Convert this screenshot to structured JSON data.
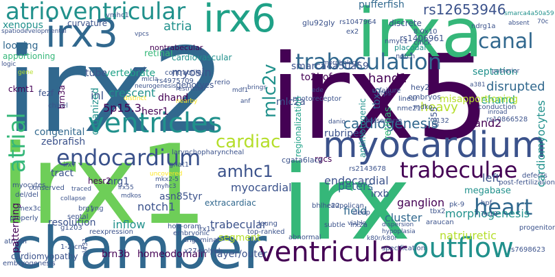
{
  "palette": {
    "background": "#ffffff",
    "dark_purple": "#440154",
    "indigo": "#3b528b",
    "blue": "#31688e",
    "teal": "#21918c",
    "cyan_green": "#1fa187",
    "green": "#35b779",
    "lime": "#6ece58",
    "yellow_green": "#b5de2b",
    "yellow": "#fde725"
  },
  "words": {
    "irx2": "irx2",
    "irx5": "irx5",
    "irx1": "irx1",
    "irx": "irx",
    "chamber": "chamber",
    "irxa": "irxa",
    "irx6": "irx6",
    "irx3": "irx3",
    "myocardium": "myocardium",
    "ventricles": "ventricles",
    "ventricular": "ventricular",
    "outflow": "outflow",
    "atrioventricular": "atrioventricular",
    "trabeculation": "trabeculation",
    "endocardium": "endocardium",
    "mlc2v": "mlc2v",
    "trabeculae": "trabeculae",
    "atrial": "atrial",
    "heart": "heart",
    "canal": "canal",
    "cardiac": "cardiac",
    "amhc1": "amhc1",
    "cardiomyocytes": "cardiomyocytes",
    "cardiogenesis": "cardiogenesis",
    "myocardial": "myocardial",
    "endocardial": "endocardial",
    "rs12653946": "rs12653946",
    "pufferfish": "pufferfish",
    "hand1": "hand1",
    "septation": "septation",
    "atria": "atria",
    "looping": "looping",
    "xenopus": "xenopus",
    "vertebrate": "vertebrate",
    "tube": "tube",
    "myosin": "myosin",
    "smarca4": "smarca4a50a59",
    "to2hof": "to2hof",
    "disrupted": "disrupted",
    "retinal": "retinal",
    "cardiovascular": "cardiovascular",
    "discrete": "discrete",
    "glu92gly": "glu92gly",
    "apportioning": "apportioning",
    "inl": "inl",
    "crescent": "crescent",
    "genotyes": "genotyes",
    "dhand": "dhand",
    "ehand": "ehand",
    "organized": "organized",
    "5p15_3": "5p15.3",
    "hesr1": "hesr1",
    "hesr2": "hesr2",
    "heavy": "heavy",
    "hand2": "hand2",
    "congenital": "congenital",
    "zebrafish": "zebrafish",
    "rubripes": "rubripes",
    "tbx5": "tbx5",
    "regionalization": "regionalization",
    "retinas": "retinas",
    "antimotogenic": "antimotogenic",
    "g355": "g355",
    "rs10866528": "rs10866528",
    "mlc2a": "mlc2a",
    "rgcs": "rgcs",
    "peters": "peters",
    "tract": "tract",
    "nrg1": "nrg1",
    "notch1": "notch1",
    "extracardiac": "extracardiac",
    "trabecular": "trabecular",
    "field": "field",
    "irxb": "irxb",
    "ganglion": "ganglion",
    "cluster": "cluster",
    "left": "left",
    "megabase": "megabase",
    "morphogenesis": "morphogenesis",
    "natriuretic": "natriuretic",
    "patterning": "patterning",
    "resolution": "resolution",
    "inflow": "inflow",
    "segment": "segment",
    "asn85tyr": "asn85tyr",
    "brn3b": "brn3b",
    "homeodomain": "homeodomain",
    "layer_outer": "layer/outer",
    "cardiomyopathy": "cardiomyopathy",
    "brn3a": "brn3a",
    "fezf": "fezf",
    "ckmt1": "ckmt1",
    "chisel": "chisel",
    "logic": "logic",
    "spatiodevelopmental": "spatiodevelopmental",
    "curvature": "curvature",
    "vmhc1": "vmhc1",
    "vpcs": "vpcs",
    "nontrabecular": "nontrabecular",
    "rs1406961": "rs1406961",
    "rs1047964": "rs1047964",
    "ex2": "ex2",
    "nmyc1": "nmyc1",
    "placodal": "placodal",
    "notch": "notch",
    "eight_0x10": "8.0x10",
    "ndrg1a": "ndrg1a",
    "absent": "absent",
    "seventy_c": "70c",
    "morphology": "morphology",
    "contractile": "contractile",
    "rcv1": "rcv1",
    "mlcla": "mlcla",
    "rs4975709": "rs4975709",
    "neurogenesis": "neurogenesis",
    "restricted": "restricted",
    "mdf1": "mdf1",
    "brings": "brings",
    "anf": "anf",
    "nearby": "nearby",
    "distinct": "distinct",
    "photoreceptor": "photoreceptor",
    "ede": "ede",
    "hey2": "hey2",
    "embryos": "embryos",
    "misapportioning": "misapportioning",
    "a381": "a381",
    "posterior": "posterior",
    "inroad": "inroad",
    "failure": "failure",
    "nfps": "nfps",
    "linear": "linear",
    "nme21": "nme21",
    "mdko": "mdko",
    "danio": "danio",
    "mesoderm": "mesoderm",
    "i132": "i132",
    "conduction": "conduction",
    "gnat1": "gnat1",
    "larynchophary": "larynchophary",
    "laryncho_pharyncheal": "larynchopharyncheal",
    "cgata6lacz": "cgata6lacz",
    "rs2143678": "rs2143678",
    "caupolican": "caupolican",
    "deep": "deep",
    "bhlhe22": "bhlhe22",
    "araucan": "araucan",
    "tbx2": "tbx2",
    "hpf": "hpf",
    "pk9": "pk-9",
    "seven_7x10": "7.7x10",
    "defects": "defects",
    "post_fertilization": "post-fertilization",
    "progenitor": "progenitor",
    "rs7698623": "rs7698623",
    "irx7": "irx7",
    "traced": "traced",
    "collapse": "collapse",
    "myocytes": "myocytes",
    "del_del": "del/del",
    "mex3c": "mex3c",
    "properly": "properly",
    "septal": "septal",
    "brg1": "brg1",
    "yng": "yng",
    "cl431": "cl431",
    "g1203": "g1203",
    "mdkos": "mdkos",
    "irx55": "irx55",
    "mkx2_5": "mkx2-5",
    "myhc3": "myhc3",
    "uncovered": "uncovered",
    "holt_oram": "holt-oram",
    "embryonic": "embryonic",
    "reexpression": "reexpression",
    "irx1a": "irx1a",
    "leung": "leung",
    "embryogenesis": "embryogenesis",
    "atrium": "atrium",
    "one_2_cm": "1-2-cm",
    "trigeminal": "trigeminal",
    "top_ranked": "top-ranked",
    "abnormal": "abnormal",
    "irx2a": "irx2a",
    "subtle": "subtle",
    "viable": "viable",
    "k80r_k80r": "k80r/k80r",
    "dispersion": "dispersion",
    "hypoplasia": "hypoplasia",
    "specification": "specification",
    "x27_polyub": "x27-polyub",
    "conserved": "conserved",
    "rerio": "rerio",
    "gene": "gene",
    "suprachsy": "chick"
  }
}
